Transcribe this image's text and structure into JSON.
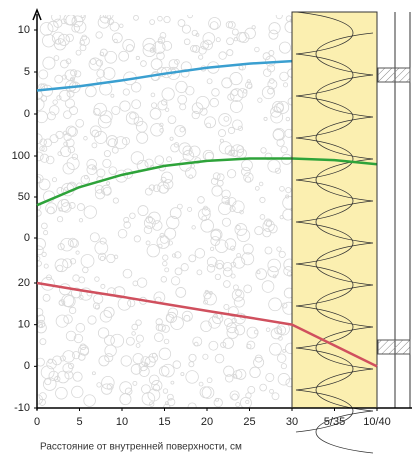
{
  "chart_data": [
    {
      "type": "line",
      "xlim": [
        0,
        44
      ],
      "ylim": [
        0,
        10
      ],
      "yticks": [
        0,
        5,
        10
      ],
      "x": [
        0,
        5,
        10,
        15,
        20,
        25,
        30
      ],
      "color": "#3a9fd0",
      "values": [
        2.8,
        3.3,
        4.0,
        4.8,
        5.5,
        6.0,
        6.3
      ]
    },
    {
      "type": "line",
      "xlim": [
        0,
        44
      ],
      "ylim": [
        0,
        100
      ],
      "yticks": [
        0,
        50,
        100
      ],
      "x": [
        0,
        5,
        10,
        15,
        20,
        25,
        30,
        35,
        40
      ],
      "color": "#2ea33a",
      "values": [
        40,
        62,
        77,
        88,
        94,
        97,
        97,
        95,
        90
      ]
    },
    {
      "type": "line",
      "xlim": [
        0,
        44
      ],
      "ylim": [
        -10,
        20
      ],
      "yticks": [
        -10,
        0,
        10,
        20
      ],
      "x": [
        0,
        5,
        10,
        15,
        20,
        25,
        30,
        35,
        40
      ],
      "color": "#d0505e",
      "values": [
        20,
        18.3,
        16.7,
        15,
        13.3,
        11.7,
        10,
        5,
        0
      ],
      "xticks": [
        0,
        5,
        10,
        15,
        20,
        25,
        30,
        {
          "value": 35,
          "label": "5/35"
        },
        {
          "value": 40,
          "label": "10/40"
        }
      ],
      "x_label": "Расстояние от внутренней поверхности, см"
    }
  ]
}
